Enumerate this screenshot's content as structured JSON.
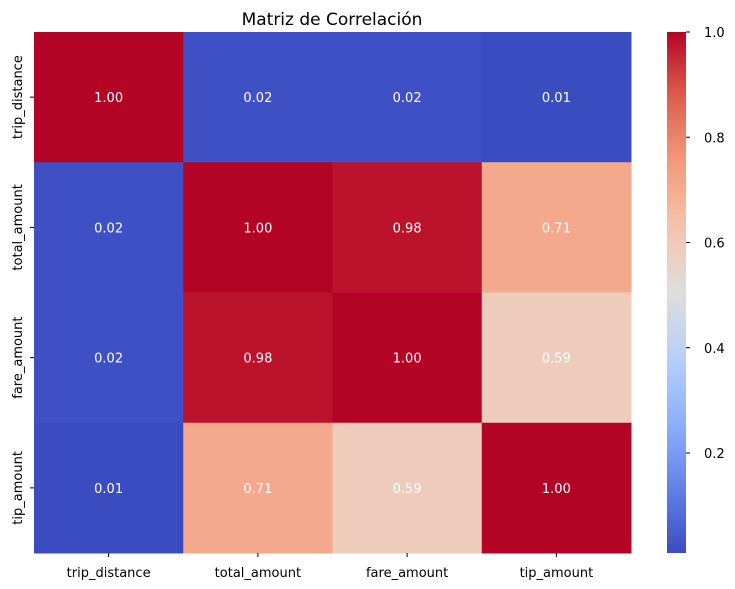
{
  "chart_data": {
    "type": "heatmap",
    "title": "Matriz de Correlación",
    "x_labels": [
      "trip_distance",
      "total_amount",
      "fare_amount",
      "tip_amount"
    ],
    "y_labels": [
      "trip_distance",
      "total_amount",
      "fare_amount",
      "tip_amount"
    ],
    "values": [
      [
        1.0,
        0.02,
        0.02,
        0.01
      ],
      [
        0.02,
        1.0,
        0.98,
        0.71
      ],
      [
        0.02,
        0.98,
        1.0,
        0.59
      ],
      [
        0.01,
        0.71,
        0.59,
        1.0
      ]
    ],
    "annotation_format": "0.00",
    "colormap": "coolwarm",
    "colorbar": {
      "range": [
        0.01,
        1.0
      ],
      "ticks": [
        0.2,
        0.4,
        0.6,
        0.8,
        1.0
      ],
      "tick_labels": [
        "0.2",
        "0.4",
        "0.6",
        "0.8",
        "1.0"
      ]
    }
  }
}
